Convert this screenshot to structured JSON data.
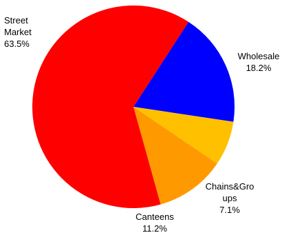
{
  "chart_data": {
    "type": "pie",
    "title": "",
    "slices": [
      {
        "name": "Wholesale",
        "value": 18.2,
        "label": "18.2%",
        "color": "#0000FF"
      },
      {
        "name": "Chains&Groups",
        "value": 7.1,
        "label": "7.1%",
        "color": "#FFC000"
      },
      {
        "name": "Canteens",
        "value": 11.2,
        "label": "11.2%",
        "color": "#FF9900"
      },
      {
        "name": "Street Market",
        "value": 63.5,
        "label": "63.5%",
        "color": "#FF0000"
      }
    ],
    "category_label_lines": [
      [
        "Wholesale"
      ],
      [
        "Chains&Gro",
        "ups"
      ],
      [
        "Canteens"
      ],
      [
        "Street",
        "Market"
      ]
    ],
    "legend": "none"
  }
}
